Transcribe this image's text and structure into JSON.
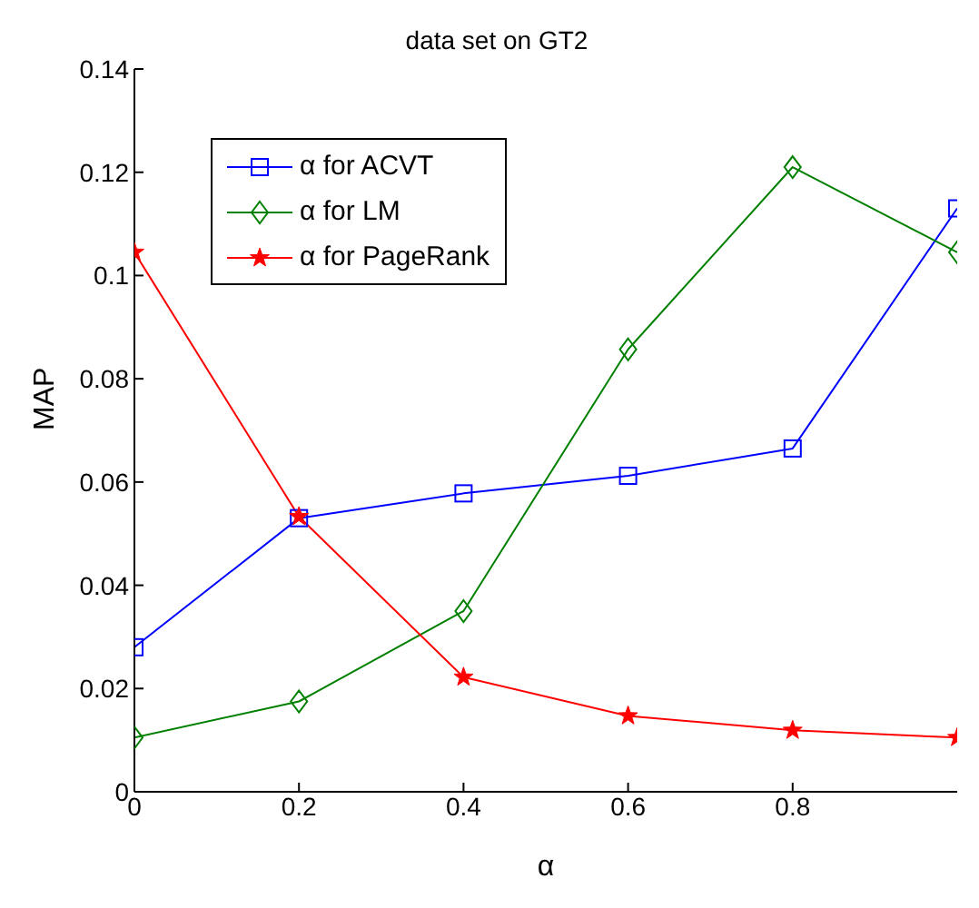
{
  "chart_data": {
    "type": "line",
    "title": "data set on GT2",
    "xlabel": "α",
    "ylabel": "MAP",
    "x": [
      0,
      0.2,
      0.4,
      0.6,
      0.8,
      1
    ],
    "series": [
      {
        "name": "α for ACVT",
        "color": "#0000ff",
        "marker": "square",
        "values": [
          0.028,
          0.053,
          0.0578,
          0.0612,
          0.0665,
          0.113
        ]
      },
      {
        "name": "α for LM",
        "color": "#008000",
        "marker": "diamond",
        "values": [
          0.0105,
          0.0175,
          0.035,
          0.0857,
          0.121,
          0.1045
        ]
      },
      {
        "name": "α for PageRank",
        "color": "#ff0000",
        "marker": "star",
        "values": [
          0.1045,
          0.0533,
          0.0222,
          0.0147,
          0.0119,
          0.0105
        ]
      }
    ],
    "xlim": [
      0,
      1
    ],
    "xticks": [
      0,
      0.2,
      0.4,
      0.6,
      0.8
    ],
    "ylim": [
      0,
      0.14
    ],
    "yticks": [
      0,
      0.02,
      0.04,
      0.06,
      0.08,
      0.1,
      0.12,
      0.14
    ],
    "grid": false,
    "legend": "top left",
    "line_style": "solid"
  }
}
